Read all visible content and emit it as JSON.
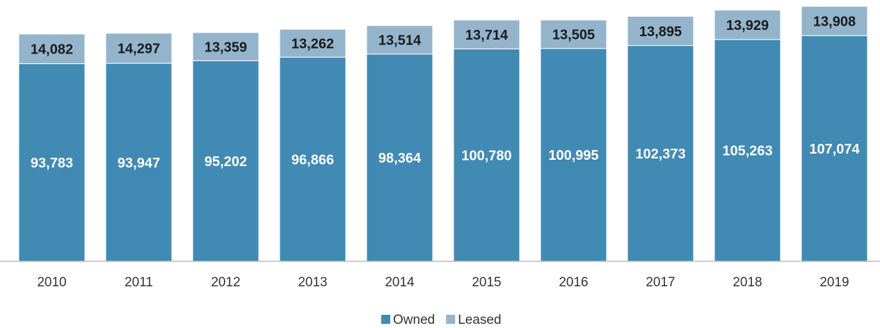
{
  "chart_data": {
    "type": "stacked_bar",
    "categories": [
      "2010",
      "2011",
      "2012",
      "2013",
      "2014",
      "2015",
      "2016",
      "2017",
      "2018",
      "2019"
    ],
    "series": [
      {
        "name": "Owned",
        "color": "#418ab3",
        "values": [
          93783,
          93947,
          95202,
          96866,
          98364,
          100780,
          100995,
          102373,
          105263,
          107074
        ],
        "value_labels": [
          "93,783",
          "93,947",
          "95,202",
          "96,866",
          "98,364",
          "100,780",
          "100,995",
          "102,373",
          "105,263",
          "107,074"
        ]
      },
      {
        "name": "Leased",
        "color": "#94b4cc",
        "values": [
          14082,
          14297,
          13359,
          13262,
          13514,
          13714,
          13505,
          13895,
          13929,
          13908
        ],
        "value_labels": [
          "14,082",
          "14,297",
          "13,359",
          "13,262",
          "13,514",
          "13,714",
          "13,505",
          "13,895",
          "13,929",
          "13,908"
        ]
      }
    ],
    "ylim": [
      0,
      124000
    ],
    "legend": "bottom"
  }
}
